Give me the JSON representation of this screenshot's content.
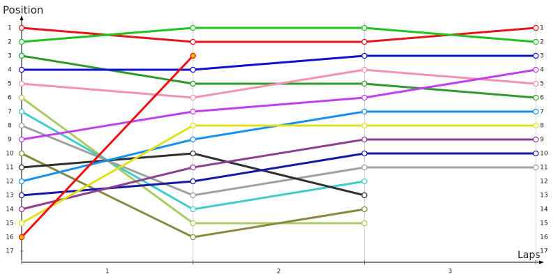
{
  "chart_data": {
    "type": "lap",
    "ylabel": "Position",
    "xlabel": "Laps",
    "x": [
      0,
      1,
      2,
      3
    ],
    "xlim": [
      0,
      3.04
    ],
    "xticks": [
      {
        "value": 0.5,
        "label": "1"
      },
      {
        "value": 1.5,
        "label": "2"
      },
      {
        "value": 2.5,
        "label": "3"
      }
    ],
    "ylim": [
      17.8,
      0.2
    ],
    "yticks": [
      1,
      2,
      3,
      4,
      5,
      6,
      7,
      8,
      9,
      10,
      11,
      12,
      13,
      14,
      15,
      16,
      17
    ],
    "grid": true,
    "series": [
      {
        "color": "#e8141a",
        "values": [
          1,
          2,
          2,
          1
        ]
      },
      {
        "color": "#1ec31e",
        "values": [
          2,
          1,
          1,
          2
        ]
      },
      {
        "color": "#2e9a2e",
        "values": [
          3,
          5,
          5,
          6
        ]
      },
      {
        "color": "#1010d0",
        "values": [
          4,
          4,
          3,
          3
        ]
      },
      {
        "color": "#f890b0",
        "values": [
          5,
          6,
          4,
          5
        ]
      },
      {
        "color": "#a8cc60",
        "values": [
          6,
          15,
          15,
          null
        ]
      },
      {
        "color": "#40cccc",
        "values": [
          7,
          14,
          12,
          null
        ]
      },
      {
        "color": "#a0a0a0",
        "values": [
          8,
          13,
          11,
          11
        ]
      },
      {
        "color": "#c040f0",
        "values": [
          9,
          7,
          6,
          4
        ]
      },
      {
        "color": "#888840",
        "values": [
          10,
          16,
          14,
          null
        ]
      },
      {
        "color": "#303030",
        "values": [
          11,
          10,
          13,
          null
        ]
      },
      {
        "color": "#1890f0",
        "values": [
          12,
          9,
          7,
          7
        ]
      },
      {
        "color": "#1818a8",
        "values": [
          13,
          12,
          10,
          10
        ]
      },
      {
        "color": "#904090",
        "values": [
          14,
          11,
          9,
          9
        ]
      },
      {
        "color": "#e0e020",
        "values": [
          15,
          8,
          8,
          8
        ]
      },
      {
        "color": "#f01010",
        "marker_fill": "#f0c000",
        "values": [
          16,
          3,
          null,
          null
        ]
      }
    ]
  }
}
